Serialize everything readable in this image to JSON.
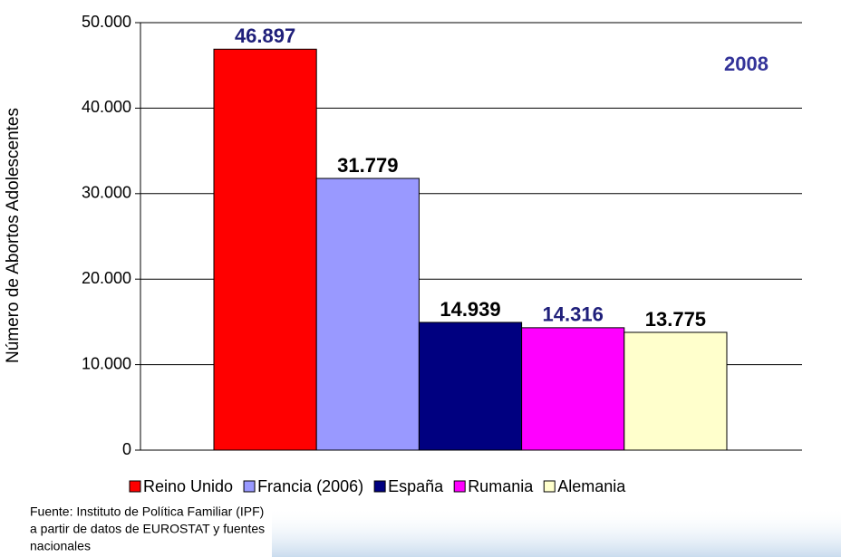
{
  "chart_data": {
    "type": "bar",
    "y_label": "Número de Abortos Adolescentes",
    "annotation": "2008",
    "annotation_color": "#333399",
    "source": [
      "Fuente: Instituto de Política Familiar (IPF)",
      "a partir de datos de EUROSTAT y fuentes",
      "nacionales"
    ],
    "series": [
      {
        "name": "Reino Unido",
        "color": "#ff0000",
        "values": [
          46897
        ],
        "value_labels": [
          "46.897"
        ],
        "label_color": "#1f1f7a"
      },
      {
        "name": "Francia (2006)",
        "color": "#9999ff",
        "values": [
          31779
        ],
        "value_labels": [
          "31.779"
        ],
        "label_color": "#000000"
      },
      {
        "name": "España",
        "color": "#000080",
        "values": [
          14939
        ],
        "value_labels": [
          "14.939"
        ],
        "label_color": "#000000"
      },
      {
        "name": "Rumania",
        "color": "#ff00ff",
        "values": [
          14316
        ],
        "value_labels": [
          "14.316"
        ],
        "label_color": "#1f1f7a"
      },
      {
        "name": "Alemania",
        "color": "#ffffcc",
        "values": [
          13775
        ],
        "value_labels": [
          "13.775"
        ],
        "label_color": "#000000"
      }
    ],
    "ylim": [
      0,
      50000
    ],
    "yticks": [
      0,
      {
        "value": 10000,
        "label": "10.000"
      },
      {
        "value": 20000,
        "label": "20.000"
      },
      {
        "value": 30000,
        "label": "30.000"
      },
      {
        "value": 40000,
        "label": "40.000"
      },
      {
        "value": 50000,
        "label": "50.000"
      }
    ],
    "grid": true
  }
}
